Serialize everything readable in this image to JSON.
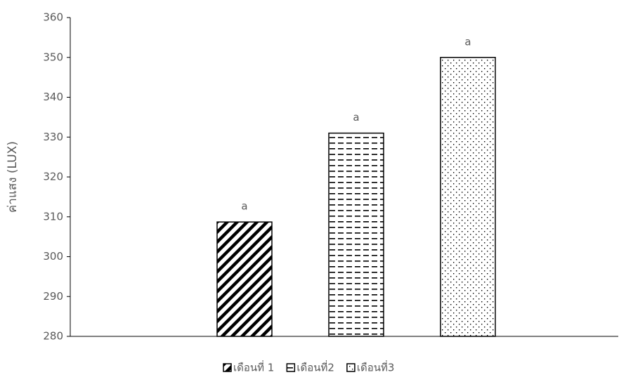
{
  "chart_data": {
    "type": "bar",
    "y_label": "ค่าแสง (LUX)",
    "categories": [
      null
    ],
    "series": [
      {
        "name": "เดือนที่ 1",
        "color": "#000000",
        "pattern": "diagonal",
        "values": [
          308.7
        ],
        "annotation": "a"
      },
      {
        "name": "เดือนที่2",
        "color": "#000000",
        "pattern": "dashes",
        "values": [
          331
        ],
        "annotation": "a"
      },
      {
        "name": "เดือนที่3",
        "color": "#000000",
        "pattern": "dots",
        "values": [
          350
        ],
        "annotation": "a"
      }
    ],
    "ylim": [
      280,
      360
    ],
    "yticks": [
      280,
      290,
      300,
      310,
      320,
      330,
      340,
      350,
      360
    ],
    "grid": false,
    "legend": "bottom"
  }
}
